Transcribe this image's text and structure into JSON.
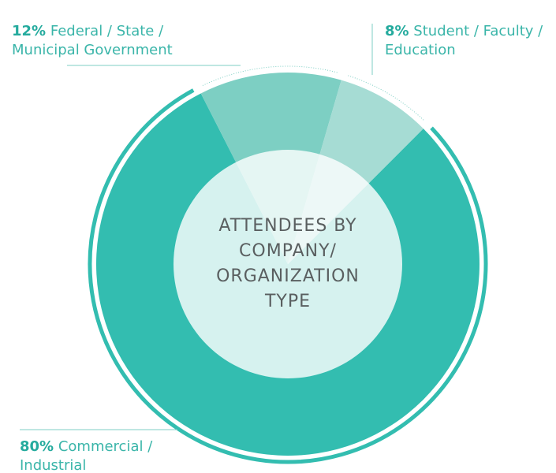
{
  "chart_data": {
    "type": "pie",
    "donut": true,
    "title": "ATTENDEES BY COMPANY/ ORGANIZATION TYPE",
    "categories": [
      "Commercial / Industrial",
      "Federal / State / Municipal Government",
      "Student / Faculty / Education"
    ],
    "values": [
      80,
      12,
      8
    ],
    "value_labels": [
      "80%",
      "12%",
      "8%"
    ],
    "colors": [
      "#33bdb0",
      "#7dcfc3",
      "#a6dcd4"
    ]
  }
}
